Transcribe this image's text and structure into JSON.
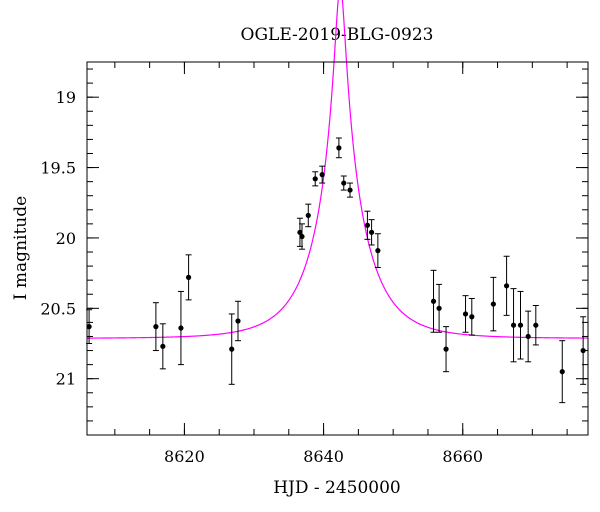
{
  "chart_data": {
    "type": "scatter",
    "title": "OGLE-2019-BLG-0923",
    "xlabel": "HJD - 2450000",
    "ylabel": "I magnitude",
    "xlim": [
      8606,
      8678
    ],
    "ylim": [
      21.4,
      18.75
    ],
    "y_inverted": true,
    "xticks": [
      8620,
      8640,
      8660
    ],
    "yticks": [
      19,
      19.5,
      20,
      20.5,
      21
    ],
    "xtick_labels": [
      "8620",
      "8640",
      "8660"
    ],
    "ytick_labels": [
      "19",
      "19.5",
      "20",
      "20.5",
      "21"
    ],
    "grid": false,
    "legend": "none",
    "colors": {
      "points": "#000000",
      "model": "#ff00ff"
    },
    "series": [
      {
        "kind": "points_with_errorbars",
        "x": [
          8606.3,
          8615.9,
          8616.9,
          8619.5,
          8620.6,
          8626.8,
          8627.7,
          8636.6,
          8636.9,
          8637.8,
          8638.8,
          8639.8,
          8642.2,
          8642.9,
          8643.8,
          8646.3,
          8646.9,
          8647.8,
          8655.8,
          8656.6,
          8657.6,
          8660.4,
          8661.3,
          8664.4,
          8666.3,
          8667.3,
          8668.3,
          8669.4,
          8670.5,
          8674.3,
          8677.3
        ],
        "y": [
          20.63,
          20.63,
          20.77,
          20.64,
          20.28,
          20.79,
          20.59,
          19.96,
          19.99,
          19.84,
          19.58,
          19.55,
          19.36,
          19.61,
          19.66,
          19.91,
          19.96,
          20.09,
          20.45,
          20.5,
          20.79,
          20.54,
          20.56,
          20.47,
          20.34,
          20.62,
          20.62,
          20.7,
          20.62,
          20.95,
          20.8
        ],
        "yerr": [
          0.12,
          0.17,
          0.16,
          0.26,
          0.16,
          0.25,
          0.14,
          0.1,
          0.09,
          0.08,
          0.05,
          0.06,
          0.07,
          0.05,
          0.05,
          0.1,
          0.09,
          0.12,
          0.22,
          0.17,
          0.16,
          0.13,
          0.13,
          0.19,
          0.21,
          0.26,
          0.24,
          0.18,
          0.14,
          0.22,
          0.24
        ]
      },
      {
        "kind": "model_curve",
        "model": "paczynski",
        "t0": 8642.4,
        "u0": 0.1,
        "tE": 6.8,
        "i_base": 20.714
      }
    ]
  }
}
